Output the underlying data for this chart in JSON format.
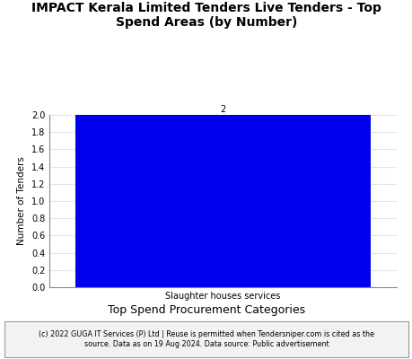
{
  "title": "IMPACT Kerala Limited Tenders Live Tenders - Top\nSpend Areas (by Number)",
  "categories": [
    "Slaughter houses services"
  ],
  "values": [
    2
  ],
  "bar_color": "#0000ee",
  "ylabel": "Number of Tenders",
  "xlabel": "Top Spend Procurement Categories",
  "ylim": [
    0,
    2.0
  ],
  "yticks": [
    0.0,
    0.2,
    0.4,
    0.6,
    0.8,
    1.0,
    1.2,
    1.4,
    1.6,
    1.8,
    2.0
  ],
  "title_fontsize": 10,
  "axis_label_fontsize": 7.5,
  "tick_fontsize": 7,
  "bar_label_fontsize": 7,
  "xlabel_fontsize": 9,
  "footer_text": "(c) 2022 GUGA IT Services (P) Ltd | Reuse is permitted when Tendersniper.com is cited as the\nsource. Data as on 19 Aug 2024. Data source: Public advertisement",
  "footer_fontsize": 5.8,
  "grid_color": "#bbbbbb",
  "background_color": "#ffffff",
  "footer_bg_color": "#f2f2f2"
}
